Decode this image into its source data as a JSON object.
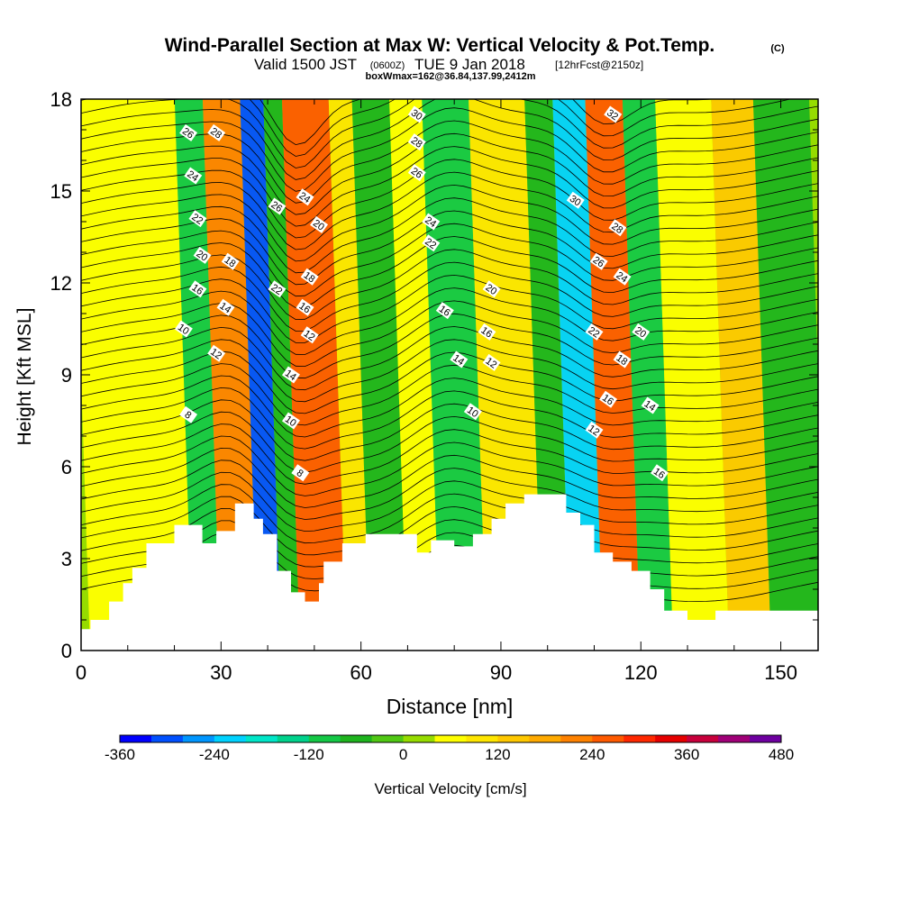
{
  "header": {
    "title": "Wind-Parallel Section at Max W: Vertical Velocity & Pot.Temp.",
    "copyright": "(C)",
    "valid_prefix": "Valid 1500 JST",
    "valid_zulu": "(0600Z)",
    "valid_date": "TUE 9 Jan 2018",
    "forecast": "[12hrFcst@2150z]",
    "box_info": "boxWmax=162@36.84,137.99,2412m"
  },
  "chart_data": {
    "type": "heatmap",
    "title": "Wind-Parallel Section at Max W: Vertical Velocity & Pot.Temp.",
    "xlabel": "Distance [nm]",
    "ylabel": "Height [Kft MSL]",
    "xlim": [
      0,
      158
    ],
    "ylim": [
      0,
      18
    ],
    "x_ticks": [
      "0",
      "30",
      "60",
      "90",
      "120",
      "150"
    ],
    "y_ticks": [
      "0",
      "3",
      "6",
      "9",
      "12",
      "15",
      "18"
    ],
    "grid": false,
    "colorbar": {
      "label": "Vertical Velocity [cm/s]",
      "tick_labels": [
        "-360",
        "-240",
        "-120",
        "0",
        "120",
        "240",
        "360",
        "480"
      ],
      "min": -360,
      "max": 480,
      "colors": [
        "#0000ff",
        "#0050ff",
        "#0096ff",
        "#00d2ff",
        "#00e6c8",
        "#00d28c",
        "#14c846",
        "#1eb41e",
        "#50c814",
        "#96dc00",
        "#ffff00",
        "#ffe600",
        "#ffc800",
        "#ffaa00",
        "#ff8200",
        "#ff5a00",
        "#ff2800",
        "#e60000",
        "#c8003c",
        "#a00078",
        "#6e00a0"
      ]
    },
    "vertical_velocity_bands": [
      {
        "x": [
          0,
          22
        ],
        "w": 60
      },
      {
        "x": [
          22,
          28
        ],
        "w": -120
      },
      {
        "x": [
          28,
          36
        ],
        "w": 200
      },
      {
        "x": [
          36,
          41
        ],
        "w": -300
      },
      {
        "x": [
          41,
          45
        ],
        "w": -60
      },
      {
        "x": [
          45,
          55
        ],
        "w": 240
      },
      {
        "x": [
          55,
          60
        ],
        "w": 100
      },
      {
        "x": [
          60,
          68
        ],
        "w": -60
      },
      {
        "x": [
          68,
          75
        ],
        "w": 60
      },
      {
        "x": [
          75,
          85
        ],
        "w": -120
      },
      {
        "x": [
          85,
          97
        ],
        "w": 80
      },
      {
        "x": [
          97,
          103
        ],
        "w": -60
      },
      {
        "x": [
          103,
          110
        ],
        "w": -240
      },
      {
        "x": [
          110,
          118
        ],
        "w": 240
      },
      {
        "x": [
          118,
          125
        ],
        "w": -120
      },
      {
        "x": [
          125,
          137
        ],
        "w": 60
      },
      {
        "x": [
          137,
          146
        ],
        "w": 120
      },
      {
        "x": [
          146,
          158
        ],
        "w": -60
      }
    ],
    "potential_temperature_labels": [
      {
        "x": 23,
        "y": 16.9,
        "label": "26"
      },
      {
        "x": 29,
        "y": 16.9,
        "label": "28"
      },
      {
        "x": 24,
        "y": 15.5,
        "label": "24"
      },
      {
        "x": 25,
        "y": 14.1,
        "label": "22"
      },
      {
        "x": 26,
        "y": 12.9,
        "label": "20"
      },
      {
        "x": 25,
        "y": 11.8,
        "label": "16"
      },
      {
        "x": 22,
        "y": 10.5,
        "label": "10"
      },
      {
        "x": 23,
        "y": 7.7,
        "label": "8"
      },
      {
        "x": 32,
        "y": 12.7,
        "label": "18"
      },
      {
        "x": 31,
        "y": 11.2,
        "label": "14"
      },
      {
        "x": 29,
        "y": 9.7,
        "label": "12"
      },
      {
        "x": 42,
        "y": 14.5,
        "label": "26"
      },
      {
        "x": 48,
        "y": 14.8,
        "label": "24"
      },
      {
        "x": 51,
        "y": 13.9,
        "label": "20"
      },
      {
        "x": 42,
        "y": 11.8,
        "label": "22"
      },
      {
        "x": 49,
        "y": 12.2,
        "label": "18"
      },
      {
        "x": 48,
        "y": 11.2,
        "label": "16"
      },
      {
        "x": 49,
        "y": 10.3,
        "label": "12"
      },
      {
        "x": 45,
        "y": 9.0,
        "label": "14"
      },
      {
        "x": 45,
        "y": 7.5,
        "label": "10"
      },
      {
        "x": 47,
        "y": 5.8,
        "label": "8"
      },
      {
        "x": 72,
        "y": 17.5,
        "label": "30"
      },
      {
        "x": 72,
        "y": 16.6,
        "label": "28"
      },
      {
        "x": 72,
        "y": 15.6,
        "label": "26"
      },
      {
        "x": 75,
        "y": 14.0,
        "label": "24"
      },
      {
        "x": 75,
        "y": 13.3,
        "label": "22"
      },
      {
        "x": 78,
        "y": 11.1,
        "label": "16"
      },
      {
        "x": 81,
        "y": 9.5,
        "label": "14"
      },
      {
        "x": 84,
        "y": 7.8,
        "label": "10"
      },
      {
        "x": 88,
        "y": 11.8,
        "label": "20"
      },
      {
        "x": 87,
        "y": 10.4,
        "label": "16"
      },
      {
        "x": 88,
        "y": 9.4,
        "label": "12"
      },
      {
        "x": 106,
        "y": 14.7,
        "label": "30"
      },
      {
        "x": 111,
        "y": 12.7,
        "label": "26"
      },
      {
        "x": 114,
        "y": 17.5,
        "label": "32"
      },
      {
        "x": 115,
        "y": 13.8,
        "label": "28"
      },
      {
        "x": 116,
        "y": 12.2,
        "label": "24"
      },
      {
        "x": 110,
        "y": 10.4,
        "label": "22"
      },
      {
        "x": 120,
        "y": 10.4,
        "label": "20"
      },
      {
        "x": 116,
        "y": 9.5,
        "label": "18"
      },
      {
        "x": 113,
        "y": 8.2,
        "label": "16"
      },
      {
        "x": 122,
        "y": 8.0,
        "label": "14"
      },
      {
        "x": 110,
        "y": 7.2,
        "label": "12"
      },
      {
        "x": 124,
        "y": 5.8,
        "label": "16"
      }
    ],
    "terrain": [
      [
        0,
        0.7
      ],
      [
        2,
        0.7
      ],
      [
        2,
        1.0
      ],
      [
        6,
        1.0
      ],
      [
        6,
        1.6
      ],
      [
        9,
        1.6
      ],
      [
        9,
        2.2
      ],
      [
        11,
        2.2
      ],
      [
        11,
        2.7
      ],
      [
        14,
        2.7
      ],
      [
        14,
        3.5
      ],
      [
        20,
        3.5
      ],
      [
        20,
        4.1
      ],
      [
        26,
        4.1
      ],
      [
        26,
        3.5
      ],
      [
        29,
        3.5
      ],
      [
        29,
        3.9
      ],
      [
        33,
        3.9
      ],
      [
        33,
        4.8
      ],
      [
        37,
        4.8
      ],
      [
        37,
        4.3
      ],
      [
        39,
        4.3
      ],
      [
        39,
        3.8
      ],
      [
        42,
        3.8
      ],
      [
        42,
        2.6
      ],
      [
        45,
        2.6
      ],
      [
        45,
        1.9
      ],
      [
        48,
        1.9
      ],
      [
        48,
        1.6
      ],
      [
        51,
        1.6
      ],
      [
        51,
        2.2
      ],
      [
        52,
        2.2
      ],
      [
        52,
        2.9
      ],
      [
        56,
        2.9
      ],
      [
        56,
        3.5
      ],
      [
        61,
        3.5
      ],
      [
        61,
        3.8
      ],
      [
        72,
        3.8
      ],
      [
        72,
        3.2
      ],
      [
        75,
        3.2
      ],
      [
        75,
        3.6
      ],
      [
        80,
        3.6
      ],
      [
        80,
        3.4
      ],
      [
        84,
        3.4
      ],
      [
        84,
        3.8
      ],
      [
        88,
        3.8
      ],
      [
        88,
        4.3
      ],
      [
        91,
        4.3
      ],
      [
        91,
        4.8
      ],
      [
        95,
        4.8
      ],
      [
        95,
        5.1
      ],
      [
        104,
        5.1
      ],
      [
        104,
        4.5
      ],
      [
        107,
        4.5
      ],
      [
        107,
        4.1
      ],
      [
        110,
        4.1
      ],
      [
        110,
        3.2
      ],
      [
        114,
        3.2
      ],
      [
        114,
        2.9
      ],
      [
        118,
        2.9
      ],
      [
        118,
        2.6
      ],
      [
        122,
        2.6
      ],
      [
        122,
        2.0
      ],
      [
        125,
        2.0
      ],
      [
        125,
        1.3
      ],
      [
        130,
        1.3
      ],
      [
        130,
        1.0
      ],
      [
        136,
        1.0
      ],
      [
        136,
        1.3
      ],
      [
        158,
        1.3
      ]
    ]
  }
}
